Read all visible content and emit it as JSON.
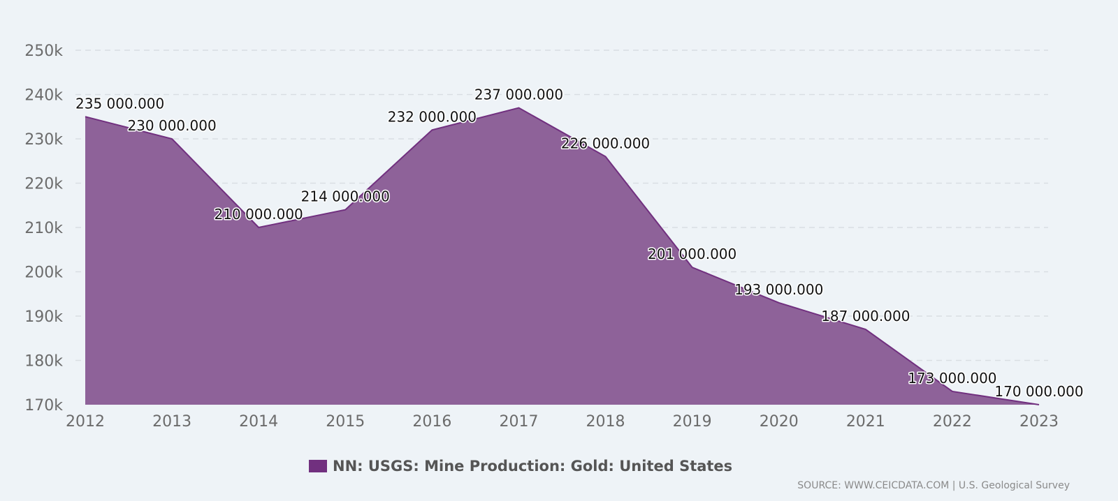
{
  "chart_data": {
    "type": "area",
    "x": [
      "2012",
      "2013",
      "2014",
      "2015",
      "2016",
      "2017",
      "2018",
      "2019",
      "2020",
      "2021",
      "2022",
      "2023"
    ],
    "series": [
      {
        "name": "NN: USGS: Mine Production: Gold: United States",
        "values": [
          235000,
          230000,
          210000,
          214000,
          232000,
          237000,
          226000,
          201000,
          193000,
          187000,
          173000,
          170000
        ],
        "labels": [
          "235 000.000",
          "230 000.000",
          "210 000.000",
          "214 000.000",
          "232 000.000",
          "237 000.000",
          "226 000.000",
          "201 000.000",
          "193 000.000",
          "187 000.000",
          "173 000.000",
          "170 000.000"
        ],
        "fill_color": "#8e6299",
        "line_color": "#71307f"
      }
    ],
    "ylim": [
      170000,
      250000
    ],
    "yticks": [
      170000,
      180000,
      190000,
      200000,
      210000,
      220000,
      230000,
      240000,
      250000
    ],
    "ytick_labels": [
      "170k",
      "180k",
      "190k",
      "200k",
      "210k",
      "220k",
      "230k",
      "240k",
      "250k"
    ],
    "grid": "horizontal-dashed",
    "legend_position": "bottom-center"
  },
  "legend": {
    "label": "NN: USGS: Mine Production: Gold: United States",
    "color": "#71307f"
  },
  "source": "SOURCE: WWW.CEICDATA.COM | U.S. Geological Survey"
}
